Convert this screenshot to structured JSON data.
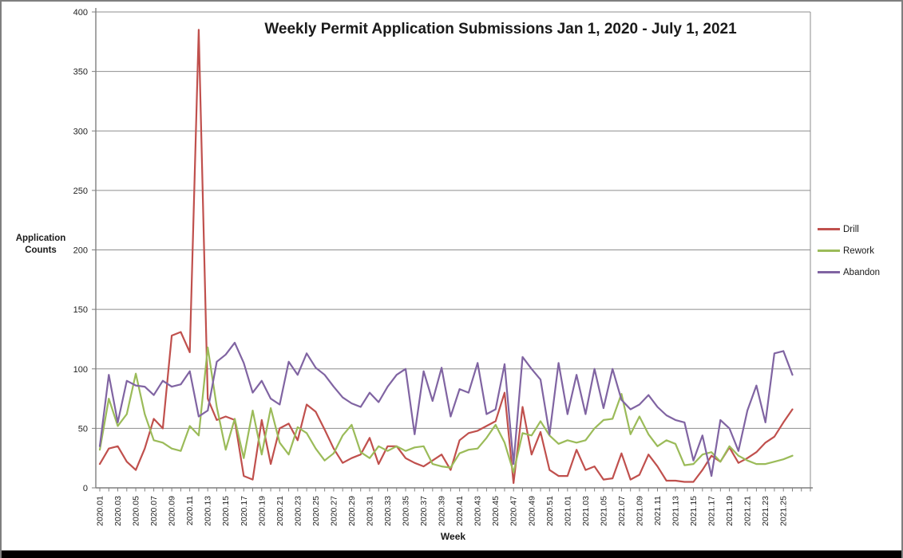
{
  "chart_data": {
    "type": "line",
    "title": "Weekly Permit Application Submissions Jan 1, 2020 - July 1, 2021",
    "xlabel": "Week",
    "ylabel": "Application Counts",
    "ylim": [
      0,
      400
    ],
    "ytick_interval": 50,
    "ytick_labels": [
      "0",
      "50",
      "100",
      "150",
      "200",
      "250",
      "300",
      "350",
      "400"
    ],
    "x_tick_label_every": 2,
    "grid": true,
    "legend_position": "right",
    "axis_color": "#7f7f7f",
    "grid_color": "#8e8e8e",
    "tick_label_color": "#1f1f1f",
    "categories": [
      "2020.01",
      "2020.02",
      "2020.03",
      "2020.04",
      "2020.05",
      "2020.06",
      "2020.07",
      "2020.08",
      "2020.09",
      "2020.10",
      "2020.11",
      "2020.12",
      "2020.13",
      "2020.14",
      "2020.15",
      "2020.16",
      "2020.17",
      "2020.18",
      "2020.19",
      "2020.20",
      "2020.21",
      "2020.22",
      "2020.23",
      "2020.24",
      "2020.25",
      "2020.26",
      "2020.27",
      "2020.28",
      "2020.29",
      "2020.30",
      "2020.31",
      "2020.32",
      "2020.33",
      "2020.34",
      "2020.35",
      "2020.36",
      "2020.37",
      "2020.38",
      "2020.39",
      "2020.40",
      "2020.41",
      "2020.42",
      "2020.43",
      "2020.44",
      "2020.45",
      "2020.46",
      "2020.47",
      "2020.48",
      "2020.49",
      "2020.50",
      "2020.51",
      "2020.52",
      "2021.01",
      "2021.02",
      "2021.03",
      "2021.04",
      "2021.05",
      "2021.06",
      "2021.07",
      "2021.08",
      "2021.09",
      "2021.10",
      "2021.11",
      "2021.12",
      "2021.13",
      "2021.14",
      "2021.15",
      "2021.16",
      "2021.17",
      "2021.18",
      "2021.19",
      "2021.20",
      "2021.21",
      "2021.22",
      "2021.23",
      "2021.24",
      "2021.25",
      "2021.26"
    ],
    "series": [
      {
        "name": "Drill",
        "color": "#C0504D",
        "values": [
          20,
          33,
          35,
          22,
          15,
          33,
          58,
          50,
          128,
          131,
          114,
          385,
          75,
          57,
          60,
          57,
          10,
          7,
          57,
          20,
          50,
          54,
          40,
          70,
          64,
          49,
          33,
          21,
          25,
          28,
          42,
          20,
          35,
          35,
          25,
          21,
          18,
          23,
          28,
          15,
          40,
          46,
          48,
          52,
          56,
          80,
          4,
          68,
          28,
          47,
          15,
          10,
          10,
          32,
          15,
          18,
          7,
          8,
          29,
          7,
          11,
          28,
          18,
          6,
          6,
          5,
          5,
          15,
          27,
          22,
          34,
          21,
          25,
          30,
          38,
          43,
          55,
          66
        ]
      },
      {
        "name": "Rework",
        "color": "#9BBB59",
        "values": [
          32,
          75,
          52,
          62,
          96,
          62,
          40,
          38,
          33,
          31,
          52,
          44,
          118,
          68,
          32,
          58,
          25,
          65,
          28,
          67,
          38,
          28,
          51,
          46,
          33,
          23,
          29,
          44,
          53,
          30,
          25,
          35,
          31,
          35,
          31,
          34,
          35,
          20,
          18,
          17,
          29,
          32,
          33,
          42,
          53,
          38,
          13,
          46,
          44,
          56,
          44,
          37,
          40,
          38,
          40,
          50,
          57,
          58,
          79,
          45,
          60,
          45,
          35,
          40,
          37,
          19,
          20,
          28,
          30,
          22,
          35,
          27,
          23,
          20,
          20,
          22,
          24,
          27
        ]
      },
      {
        "name": "Abandon",
        "color": "#8064A2",
        "values": [
          35,
          95,
          55,
          90,
          86,
          85,
          78,
          90,
          85,
          87,
          98,
          60,
          65,
          106,
          112,
          122,
          105,
          80,
          90,
          75,
          70,
          106,
          95,
          113,
          101,
          95,
          85,
          76,
          71,
          68,
          80,
          72,
          85,
          95,
          100,
          45,
          98,
          73,
          101,
          60,
          83,
          80,
          105,
          62,
          66,
          104,
          20,
          110,
          100,
          91,
          45,
          105,
          62,
          95,
          62,
          100,
          67,
          100,
          74,
          66,
          70,
          78,
          68,
          61,
          57,
          55,
          23,
          44,
          10,
          57,
          50,
          31,
          65,
          86,
          55,
          113,
          115,
          95
        ]
      }
    ]
  }
}
